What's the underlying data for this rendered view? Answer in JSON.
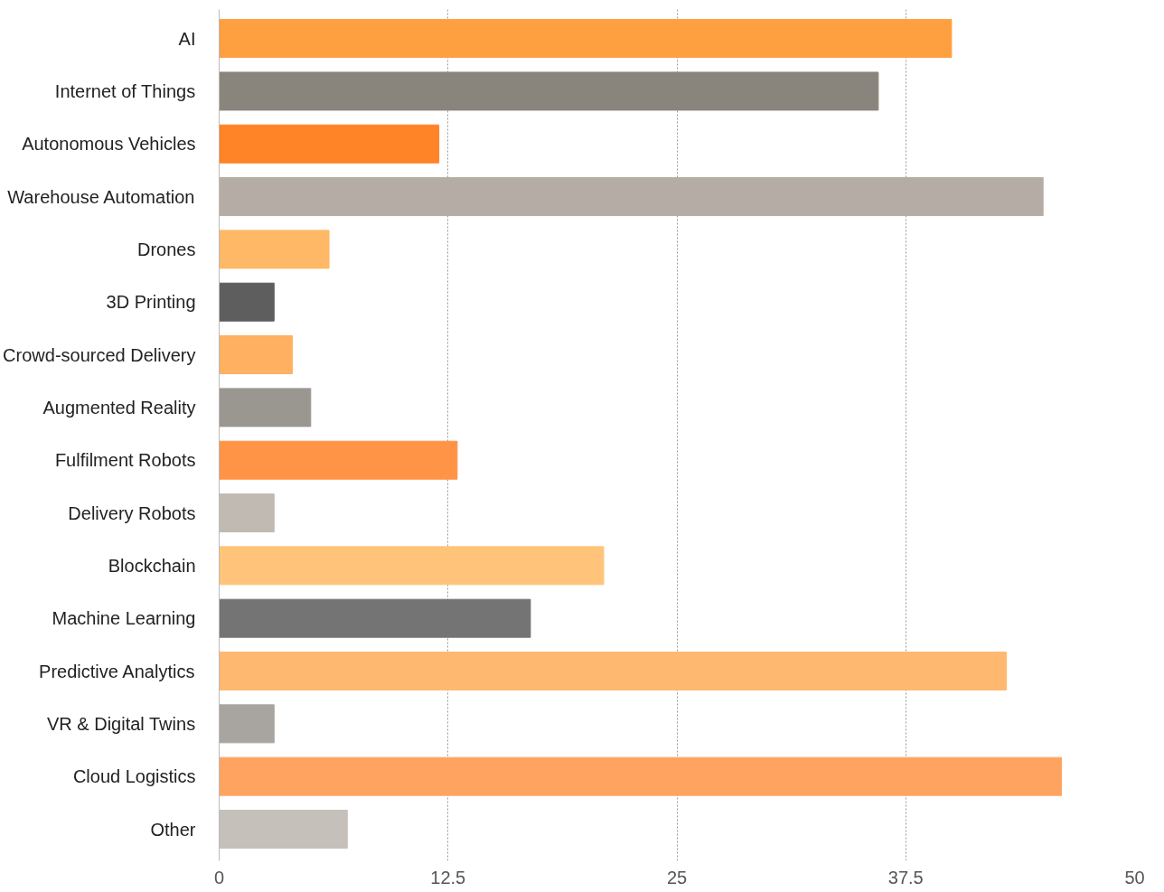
{
  "chart_data": {
    "type": "bar",
    "orientation": "horizontal",
    "categories": [
      "AI",
      "Internet of Things",
      "Autonomous Vehicles",
      "Warehouse Automation",
      "Drones",
      "3D Printing",
      "Crowd-sourced Delivery",
      "Augmented Reality",
      "Fulfilment Robots",
      "Delivery Robots",
      "Blockchain",
      "Machine Learning",
      "Predictive Analytics",
      "VR & Digital Twins",
      "Cloud Logistics",
      "Other"
    ],
    "values": [
      40,
      36,
      12,
      45,
      6,
      3,
      4,
      5,
      13,
      3,
      21,
      17,
      43,
      3,
      46,
      7
    ],
    "colors": [
      "#ffa040",
      "#8a857c",
      "#ff8327",
      "#b5ada5",
      "#ffb866",
      "#5e5e5e",
      "#ffb060",
      "#9a9690",
      "#ff9447",
      "#c0bab3",
      "#ffc47a",
      "#747474",
      "#ffb870",
      "#a8a49f",
      "#ffa460",
      "#c5c0ba"
    ],
    "xlim": [
      0,
      50
    ],
    "xticks": [
      0,
      12.5,
      25,
      37.5,
      50
    ],
    "grid": "x"
  }
}
